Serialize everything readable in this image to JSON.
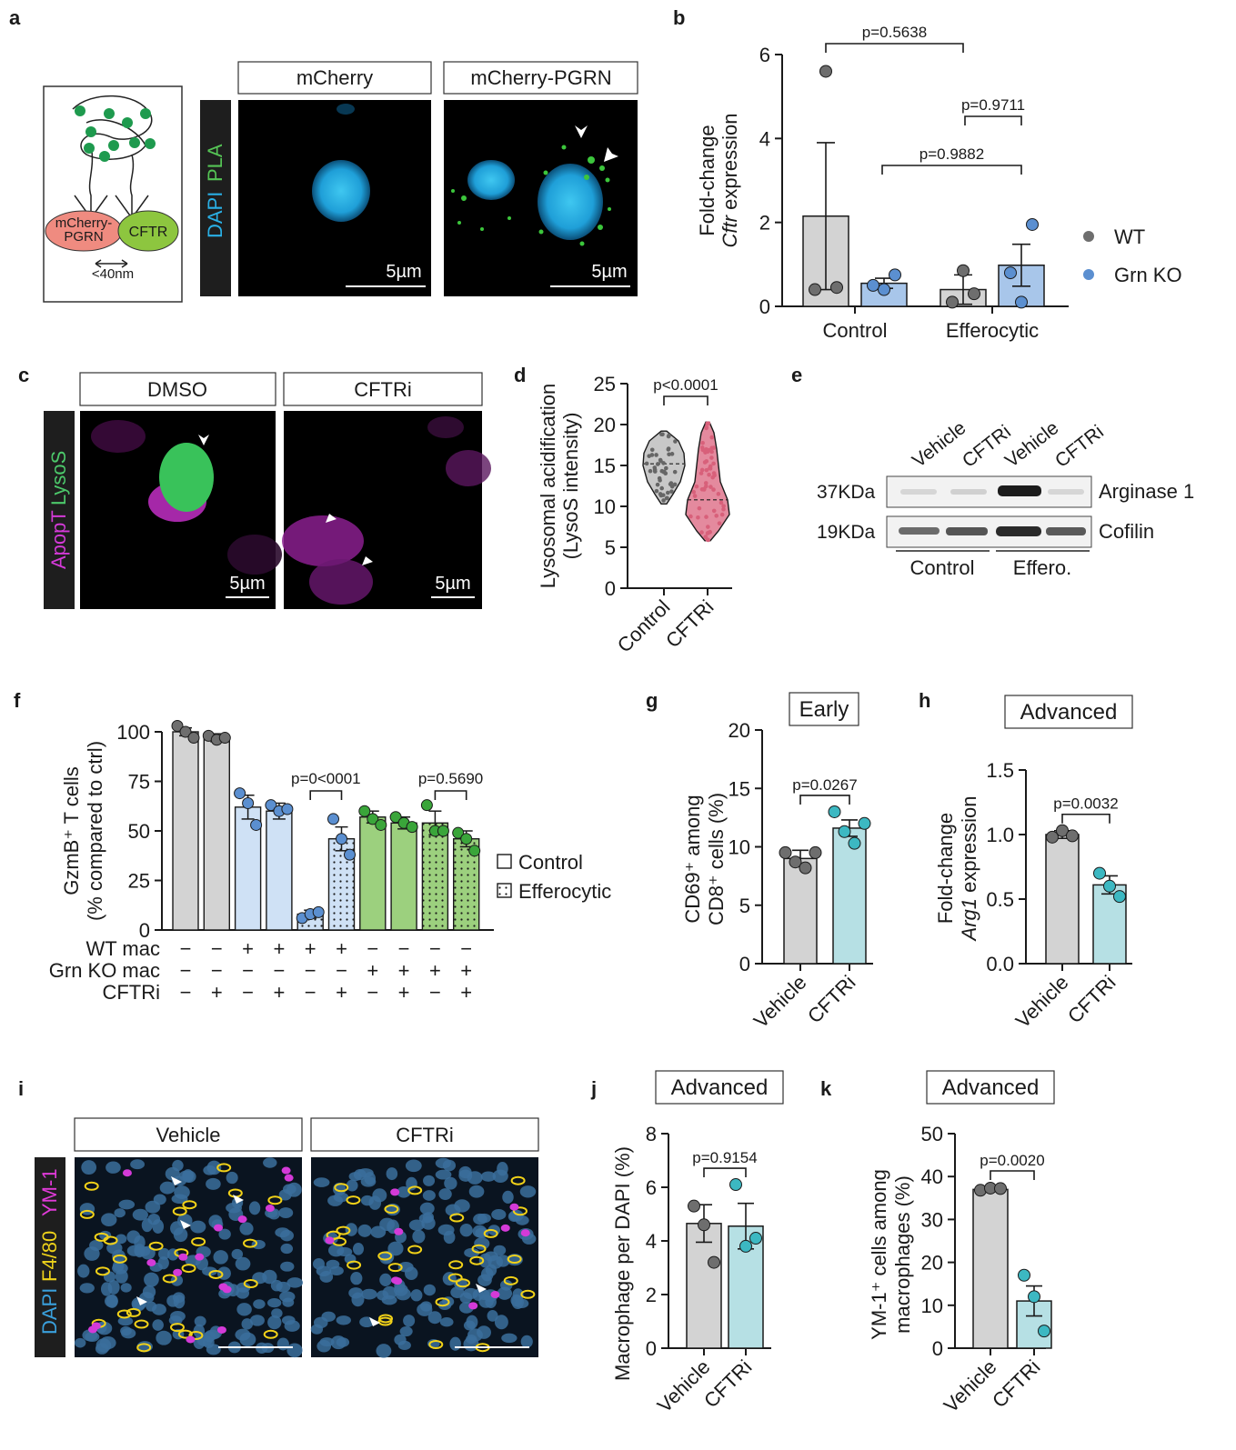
{
  "panel_letters": [
    "a",
    "b",
    "c",
    "d",
    "e",
    "f",
    "g",
    "h",
    "i",
    "j",
    "k"
  ],
  "colors": {
    "wt": "#6e6e6e",
    "ko": "#5b8fd0",
    "grey_bar": "#d3d3d3",
    "blue_bar": "#a8c6ea",
    "cyan": "#3cb8c2",
    "cyan_bar": "#b6e0e4",
    "green": "#3aa53a",
    "green_bar": "#9cd07e",
    "pink": "#d8607a",
    "light_blue_bar": "#cfe1f5",
    "nucleus": "#2aa9dc",
    "pla": "#3cc63c",
    "magenta": "#c22fc6",
    "lysos": "#3dbe5e",
    "f480": "#f2d218"
  },
  "panel_a": {
    "schematic": {
      "left_label": "mCherry-\nPGRN",
      "right_label": "CFTR",
      "distance_label": "<40nm"
    },
    "stain_label_1": "DAPI",
    "stain_label_2": "PLA",
    "image_titles": [
      "mCherry",
      "mCherry-PGRN"
    ],
    "scale_bar": "5µm"
  },
  "panel_b": {
    "chart_data": {
      "type": "bar",
      "categories": [
        "Control",
        "Efferocytic"
      ],
      "ylabel_line1": "Fold-change",
      "ylabel_gene": "Cftr",
      "ylabel_rest": "expression",
      "ylim": [
        0,
        6
      ],
      "yticks": [
        "0",
        "2",
        "4",
        "6"
      ],
      "series": [
        {
          "name": "WT",
          "values": [
            2.15,
            0.4
          ],
          "sem": [
            1.75,
            0.35
          ],
          "points": [
            [
              5.6,
              0.4,
              0.45
            ],
            [
              0.85,
              0.1,
              0.3
            ]
          ]
        },
        {
          "name": "Grn KO",
          "values": [
            0.55,
            0.98
          ],
          "sem": [
            0.12,
            0.5
          ],
          "points": [
            [
              0.4,
              0.5,
              0.75
            ],
            [
              0.1,
              0.8,
              1.95
            ]
          ]
        }
      ],
      "pvalues": [
        "p=0.5638",
        "p=0.9711",
        "p=0.9882"
      ],
      "legend": "right"
    }
  },
  "panel_c": {
    "stain_label_1": "ApopT",
    "stain_label_2": "LysoS",
    "image_titles": [
      "DMSO",
      "CFTRi"
    ],
    "scale_bar": "5µm"
  },
  "panel_d": {
    "chart_data": {
      "type": "violin",
      "categories": [
        "Control",
        "CFTRi"
      ],
      "ylabel_line1": "Lysosomal acidification",
      "ylabel_line2": "(LysoS intensity)",
      "ylim": [
        0,
        25
      ],
      "yticks": [
        "0",
        "5",
        "10",
        "15",
        "20",
        "25"
      ],
      "medians": [
        15.2,
        10.8
      ],
      "ranges": [
        [
          10.3,
          19.2
        ],
        [
          5.8,
          20.3
        ]
      ],
      "pvalue": "p<0.0001"
    }
  },
  "panel_e": {
    "lanes": [
      "Vehicle",
      "CFTRi",
      "Vehicle",
      "CFTRi"
    ],
    "mw": [
      "37KDa",
      "19KDa"
    ],
    "proteins": [
      "Arginase 1",
      "Cofilin"
    ],
    "groups": [
      "Control",
      "Effero."
    ]
  },
  "panel_f": {
    "chart_data": {
      "type": "bar",
      "ylabel_line1": "GzmB⁺ T cells",
      "ylabel_line2": "(% compared to ctrl)",
      "ylim": [
        0,
        100
      ],
      "yticks": [
        "0",
        "25",
        "50",
        "75",
        "100"
      ],
      "values": [
        100,
        97,
        62,
        60,
        8,
        46,
        57,
        54,
        54,
        46
      ],
      "sem": [
        2,
        2,
        6,
        4,
        2,
        6,
        3,
        3,
        6,
        4
      ],
      "points": [
        [
          103,
          100,
          97
        ],
        [
          98,
          96,
          97
        ],
        [
          69,
          64,
          53
        ],
        [
          63,
          60,
          61
        ],
        [
          6,
          8,
          9
        ],
        [
          56,
          46,
          38
        ],
        [
          60,
          56,
          53
        ],
        [
          57,
          54,
          52
        ],
        [
          63,
          50,
          50
        ],
        [
          49,
          46,
          40
        ]
      ],
      "rows": [
        {
          "label": "WT mac",
          "signs": [
            "−",
            "−",
            "+",
            "+",
            "+",
            "+",
            "−",
            "−",
            "−",
            "−"
          ]
        },
        {
          "label": "Grn KO mac",
          "signs": [
            "−",
            "−",
            "−",
            "−",
            "−",
            "−",
            "+",
            "+",
            "+",
            "+"
          ]
        },
        {
          "label": "CFTRi",
          "signs": [
            "−",
            "+",
            "−",
            "+",
            "−",
            "+",
            "−",
            "+",
            "−",
            "+"
          ]
        }
      ],
      "pvalues": [
        "p=0<0001",
        "p=0.5690"
      ],
      "legend": [
        "Control",
        "Efferocytic"
      ]
    }
  },
  "panel_g": {
    "chart_data": {
      "type": "bar",
      "title": "Early",
      "categories": [
        "Vehicle",
        "CFTRi"
      ],
      "ylabel_line1": "CD69⁺ among",
      "ylabel_line2": "CD8⁺ cells (%)",
      "ylim": [
        0,
        20
      ],
      "yticks": [
        "0",
        "5",
        "10",
        "15",
        "20"
      ],
      "values": [
        9.0,
        11.6
      ],
      "sem": [
        0.7,
        0.7
      ],
      "points": [
        [
          9.5,
          8.7,
          8.2,
          9.5
        ],
        [
          13,
          11.3,
          10.3,
          12
        ]
      ],
      "pvalue": "p=0.0267"
    }
  },
  "panel_h": {
    "chart_data": {
      "type": "bar",
      "title": "Advanced",
      "categories": [
        "Vehicle",
        "CFTRi"
      ],
      "ylabel_line1": "Fold-change",
      "ylabel_gene": "Arg1",
      "ylabel_rest": "expression",
      "ylim": [
        0,
        1.5
      ],
      "yticks": [
        "0.0",
        "0.5",
        "1.0",
        "1.5"
      ],
      "values": [
        1.0,
        0.61
      ],
      "sem": [
        0.03,
        0.07
      ],
      "points": [
        [
          0.98,
          1.03,
          0.99
        ],
        [
          0.7,
          0.6,
          0.52
        ]
      ],
      "pvalue": "p=0.0032"
    }
  },
  "panel_i": {
    "stain_label_1": "DAPI",
    "stain_label_2": "F4/80",
    "stain_label_3": "YM-1",
    "image_titles": [
      "Vehicle",
      "CFTRi"
    ]
  },
  "panel_j": {
    "chart_data": {
      "type": "bar",
      "title": "Advanced",
      "categories": [
        "Vehicle",
        "CFTRi"
      ],
      "ylabel": "Macrophage per DAPI (%)",
      "ylim": [
        0,
        8
      ],
      "yticks": [
        "0",
        "2",
        "4",
        "6",
        "8"
      ],
      "values": [
        4.65,
        4.55
      ],
      "sem": [
        0.7,
        0.85
      ],
      "points": [
        [
          5.3,
          4.6,
          3.2
        ],
        [
          6.1,
          3.8,
          4.1
        ]
      ],
      "pvalue": "p=0.9154"
    }
  },
  "panel_k": {
    "chart_data": {
      "type": "bar",
      "title": "Advanced",
      "categories": [
        "Vehicle",
        "CFTRi"
      ],
      "ylabel_line1": "YM-1⁺ cells among",
      "ylabel_line2": "macrophages (%)",
      "ylim": [
        0,
        50
      ],
      "yticks": [
        "0",
        "10",
        "20",
        "30",
        "40",
        "50"
      ],
      "values": [
        37,
        11
      ],
      "sem": [
        0.5,
        3.5
      ],
      "points": [
        [
          36.8,
          37.3,
          37.2
        ],
        [
          17,
          12,
          4
        ]
      ],
      "pvalue": "p=0.0020"
    }
  }
}
